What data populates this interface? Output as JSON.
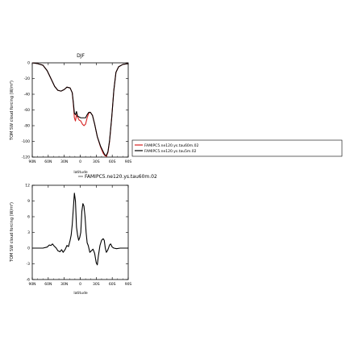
{
  "chart_data": [
    {
      "type": "line",
      "title": "DJF",
      "xlabel": "latitude",
      "ylabel": "TOM SW cloud forcing (W/m²)",
      "xlim": [
        90,
        -90
      ],
      "ylim": [
        -120,
        0
      ],
      "x_ticks": [
        90,
        60,
        30,
        0,
        -30,
        -60,
        -90
      ],
      "x_tick_labels": [
        "90N",
        "60N",
        "30N",
        "0",
        "30S",
        "60S",
        "90S"
      ],
      "y_ticks": [
        -120,
        -100,
        -80,
        -60,
        -40,
        -20,
        0
      ],
      "y_tick_labels": [
        "-120",
        "-100",
        "-80",
        "-60",
        "-40",
        "-20",
        "0"
      ],
      "legend": {
        "entries": [
          {
            "name": "FAMIPC5.ne120.ys.tau60m.02",
            "color": "#d62020"
          },
          {
            "name": "FAMIPC5.ne120.ys.tau5m.02",
            "color": "#000000"
          }
        ]
      },
      "series": [
        {
          "name": "FAMIPC5.ne120.ys.tau60m.02",
          "color": "#d62020",
          "points": [
            [
              90,
              0
            ],
            [
              80,
              -1
            ],
            [
              70,
              -3
            ],
            [
              62,
              -10
            ],
            [
              55,
              -20
            ],
            [
              48,
              -30
            ],
            [
              42,
              -35
            ],
            [
              36,
              -36
            ],
            [
              30,
              -34
            ],
            [
              25,
              -31
            ],
            [
              19,
              -32
            ],
            [
              15,
              -38
            ],
            [
              13,
              -52
            ],
            [
              11,
              -70
            ],
            [
              9,
              -74
            ],
            [
              7,
              -66
            ],
            [
              5,
              -69
            ],
            [
              2,
              -73
            ],
            [
              -1,
              -74
            ],
            [
              -4,
              -78
            ],
            [
              -7,
              -80
            ],
            [
              -10,
              -78
            ],
            [
              -13,
              -70
            ],
            [
              -16,
              -64
            ],
            [
              -19,
              -63
            ],
            [
              -23,
              -67
            ],
            [
              -27,
              -78
            ],
            [
              -32,
              -94
            ],
            [
              -38,
              -107
            ],
            [
              -43,
              -115
            ],
            [
              -46,
              -118
            ],
            [
              -49,
              -119
            ],
            [
              -52,
              -114
            ],
            [
              -55,
              -100
            ],
            [
              -59,
              -70
            ],
            [
              -63,
              -35
            ],
            [
              -67,
              -12
            ],
            [
              -72,
              -5
            ],
            [
              -80,
              -2
            ],
            [
              -90,
              -1
            ]
          ]
        },
        {
          "name": "FAMIPC5.ne120.ys.tau5m.02",
          "color": "#000000",
          "points": [
            [
              90,
              0
            ],
            [
              80,
              -1
            ],
            [
              70,
              -3
            ],
            [
              62,
              -10
            ],
            [
              55,
              -20
            ],
            [
              48,
              -30
            ],
            [
              42,
              -35
            ],
            [
              36,
              -36
            ],
            [
              30,
              -34
            ],
            [
              25,
              -31
            ],
            [
              19,
              -32
            ],
            [
              15,
              -38
            ],
            [
              13,
              -50
            ],
            [
              11,
              -64
            ],
            [
              9,
              -66
            ],
            [
              7,
              -62
            ],
            [
              5,
              -68
            ],
            [
              2,
              -69
            ],
            [
              -1,
              -70
            ],
            [
              -4,
              -70
            ],
            [
              -7,
              -70
            ],
            [
              -10,
              -70
            ],
            [
              -13,
              -66
            ],
            [
              -16,
              -63
            ],
            [
              -19,
              -63
            ],
            [
              -23,
              -67
            ],
            [
              -27,
              -78
            ],
            [
              -32,
              -94
            ],
            [
              -38,
              -106
            ],
            [
              -43,
              -113
            ],
            [
              -46,
              -117
            ],
            [
              -49,
              -118
            ],
            [
              -52,
              -113
            ],
            [
              -55,
              -99
            ],
            [
              -59,
              -70
            ],
            [
              -63,
              -35
            ],
            [
              -67,
              -12
            ],
            [
              -72,
              -5
            ],
            [
              -80,
              -2
            ],
            [
              -90,
              -1
            ]
          ]
        }
      ]
    },
    {
      "type": "line",
      "title": "FAMIPC5.ne120.ys.tau60m.02",
      "xlabel": "latitude",
      "ylabel": "TOM SW cloud forcing (W/m²)",
      "xlim": [
        90,
        -90
      ],
      "ylim": [
        -6,
        12
      ],
      "x_ticks": [
        90,
        60,
        30,
        0,
        -30,
        -60,
        -90
      ],
      "x_tick_labels": [
        "90N",
        "60N",
        "30N",
        "0",
        "30S",
        "60S",
        "90S"
      ],
      "y_ticks": [
        -6,
        -3,
        0,
        3,
        6,
        9,
        12
      ],
      "y_tick_labels": [
        "-6",
        "-3",
        "0",
        "3",
        "6",
        "9",
        "12"
      ],
      "series": [
        {
          "name": "",
          "color": "#000000",
          "points": [
            [
              90,
              0
            ],
            [
              70,
              0
            ],
            [
              62,
              0.2
            ],
            [
              58,
              0.6
            ],
            [
              55,
              0.5
            ],
            [
              52,
              0.8
            ],
            [
              49,
              0.4
            ],
            [
              45,
              0
            ],
            [
              42,
              -0.5
            ],
            [
              38,
              -0.7
            ],
            [
              35,
              -0.3
            ],
            [
              32,
              -0.8
            ],
            [
              28,
              -0.2
            ],
            [
              25,
              0.5
            ],
            [
              22,
              0.3
            ],
            [
              19,
              1.5
            ],
            [
              17,
              2.5
            ],
            [
              15,
              4.5
            ],
            [
              13,
              7.5
            ],
            [
              11,
              10.5
            ],
            [
              9,
              9
            ],
            [
              7,
              4
            ],
            [
              5,
              2.5
            ],
            [
              3,
              1.5
            ],
            [
              1,
              2
            ],
            [
              -1,
              3
            ],
            [
              -3,
              7
            ],
            [
              -5,
              8.5
            ],
            [
              -7,
              8
            ],
            [
              -9,
              6
            ],
            [
              -11,
              3
            ],
            [
              -13,
              1
            ],
            [
              -15,
              0.5
            ],
            [
              -18,
              -0.8
            ],
            [
              -21,
              -0.5
            ],
            [
              -24,
              -0.2
            ],
            [
              -27,
              -1
            ],
            [
              -30,
              -2.8
            ],
            [
              -32,
              -3.2
            ],
            [
              -34,
              -1.5
            ],
            [
              -37,
              0.5
            ],
            [
              -40,
              1.5
            ],
            [
              -43,
              1.8
            ],
            [
              -45,
              1.5
            ],
            [
              -47,
              0
            ],
            [
              -49,
              -0.8
            ],
            [
              -51,
              -0.5
            ],
            [
              -53,
              0
            ],
            [
              -55,
              0.6
            ],
            [
              -57,
              0.8
            ],
            [
              -60,
              0.2
            ],
            [
              -63,
              0
            ],
            [
              -68,
              -0.1
            ],
            [
              -75,
              0
            ],
            [
              -90,
              0
            ]
          ]
        }
      ]
    }
  ]
}
